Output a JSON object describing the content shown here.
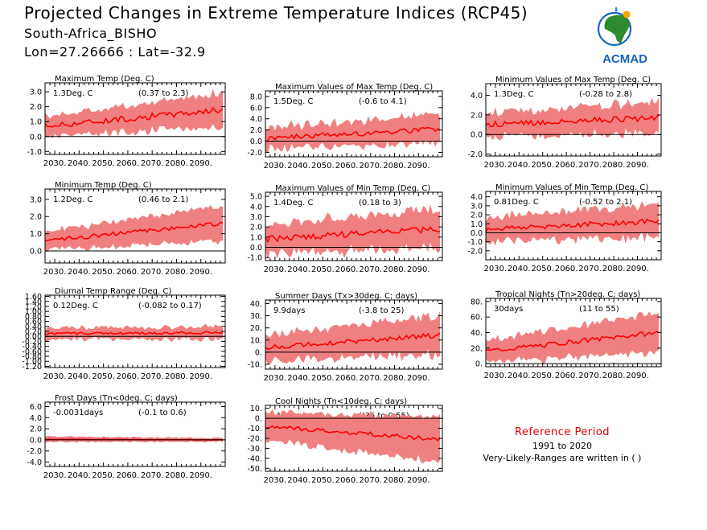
{
  "header": {
    "title": "Projected Changes in Extreme Temperature Indices (RCP45)",
    "location": "South-Africa_BISHO",
    "coords": "Lon=27.26666 : Lat=-32.9"
  },
  "logo": {
    "text": "ACMAD"
  },
  "reference": {
    "title": "Reference Period",
    "years": "1991 to 2020",
    "note": "Very-Likely-Ranges are written in ( )"
  },
  "colors": {
    "band": "#f08080",
    "line": "#ff0000",
    "zero": "#000000"
  },
  "chart_data": [
    {
      "type": "area",
      "title": "Maximum Temp (Deg. C)",
      "value": "1.3Deg. C",
      "range": "(0.37 to 2.3)",
      "yticks": [
        "-1.0",
        "0.0",
        "1.0",
        "2.0",
        "3.0"
      ],
      "ylim": [
        -1.2,
        3.6
      ],
      "x_ticks": [
        "2030.",
        "2040.",
        "2050.",
        "2060.",
        "2070.",
        "2080.",
        "2090."
      ],
      "xlim": [
        2026,
        2100
      ],
      "median_start": 0.7,
      "median_end": 1.8,
      "band_start": 0.5,
      "band_end": 1.0,
      "noise": 0.2,
      "spread": 0.3
    },
    {
      "type": "area",
      "title": "Maximum Values of Max Temp (Deg. C)",
      "value": "1.5Deg. C",
      "range": "(-0.6 to 4.1)",
      "yticks": [
        "-2.0",
        "0.0",
        "2.0",
        "4.0",
        "6.0",
        "8.0"
      ],
      "ylim": [
        -2.8,
        9.0
      ],
      "x_ticks": [
        "2030.",
        "2040.",
        "2050.",
        "2060.",
        "2070.",
        "2080.",
        "2090."
      ],
      "xlim": [
        2026,
        2100
      ],
      "median_start": 0.5,
      "median_end": 2.2,
      "band_start": 1.3,
      "band_end": 2.0,
      "noise": 0.5,
      "spread": 1.3
    },
    {
      "type": "area",
      "title": "Minimum Values of Max Temp (Deg. C)",
      "value": "1.3Deg. C",
      "range": "(-0.28 to 2.8)",
      "yticks": [
        "-2.0",
        "0.0",
        "2.0",
        "4.0"
      ],
      "ylim": [
        -2.2,
        5.2
      ],
      "x_ticks": [
        "2030.",
        "2040.",
        "2050.",
        "2060.",
        "2070.",
        "2080.",
        "2090."
      ],
      "xlim": [
        2026,
        2100
      ],
      "median_start": 1.0,
      "median_end": 1.7,
      "band_start": 0.9,
      "band_end": 1.3,
      "noise": 0.3,
      "spread": 0.6
    },
    {
      "type": "area",
      "title": "Minimum Temp (Deg. C)",
      "value": "1.2Deg. C",
      "range": "(0.46 to 2.1)",
      "yticks": [
        "0.0",
        "1.0",
        "2.0",
        "3.0"
      ],
      "ylim": [
        -0.7,
        3.6
      ],
      "x_ticks": [
        "2030.",
        "2040.",
        "2050.",
        "2060.",
        "2070.",
        "2080.",
        "2090."
      ],
      "xlim": [
        2026,
        2100
      ],
      "median_start": 0.6,
      "median_end": 1.6,
      "band_start": 0.4,
      "band_end": 0.9,
      "noise": 0.12,
      "spread": 0.25
    },
    {
      "type": "area",
      "title": "Maximum Values of Min Temp (Deg. C)",
      "value": "1.4Deg. C",
      "range": "(0.18 to 3)",
      "yticks": [
        "-1.0",
        "0.0",
        "1.0",
        "2.0",
        "3.0",
        "4.0",
        "5.0"
      ],
      "ylim": [
        -1.3,
        5.4
      ],
      "x_ticks": [
        "2030.",
        "2040.",
        "2050.",
        "2060.",
        "2070.",
        "2080.",
        "2090."
      ],
      "xlim": [
        2026,
        2100
      ],
      "median_start": 0.8,
      "median_end": 1.8,
      "band_start": 0.9,
      "band_end": 1.5,
      "noise": 0.3,
      "spread": 0.9
    },
    {
      "type": "area",
      "title": "Minimum Values of Min Temp (Deg. C)",
      "value": "0.81Deg. C",
      "range": "(-0.52 to 2.1)",
      "yticks": [
        "-2.0",
        "-1.0",
        "0.0",
        "1.0",
        "2.0",
        "3.0",
        "4.0"
      ],
      "ylim": [
        -3.0,
        4.6
      ],
      "x_ticks": [
        "2030.",
        "2040.",
        "2050.",
        "2060.",
        "2070.",
        "2080.",
        "2090."
      ],
      "xlim": [
        2026,
        2100
      ],
      "median_start": 0.4,
      "median_end": 1.3,
      "band_start": 1.0,
      "band_end": 1.4,
      "noise": 0.3,
      "spread": 0.8
    },
    {
      "type": "area",
      "title": "Diurnal Temp Range (Deg. C)",
      "value": "0.12Deg. C",
      "range": "(-0.082 to 0.17)",
      "yticks": [
        "-1.20",
        "-1.00",
        "-0.80",
        "-0.60",
        "-0.40",
        "-0.20",
        "0.00",
        "0.20",
        "0.40",
        "0.60",
        "0.80",
        "1.00",
        "1.20",
        "1.40",
        "1.60"
      ],
      "ylim": [
        -1.25,
        1.65
      ],
      "x_ticks": [
        "2030.",
        "2040.",
        "2050.",
        "2060.",
        "2070.",
        "2080.",
        "2090."
      ],
      "xlim": [
        2026,
        2100
      ],
      "median_start": 0.1,
      "median_end": 0.15,
      "band_start": 0.15,
      "band_end": 0.18,
      "noise": 0.05,
      "spread": 0.15
    },
    {
      "type": "area",
      "title": "Summer Days (Tx>30deg. C; days)",
      "value": "9.9days",
      "range": "(-3.8 to 25)",
      "yticks": [
        "-10.",
        "0.",
        "10.",
        "20.",
        "30.",
        "40."
      ],
      "ylim": [
        -14,
        43
      ],
      "x_ticks": [
        "2030.",
        "2040.",
        "2050.",
        "2060.",
        "2070.",
        "2080.",
        "2090."
      ],
      "xlim": [
        2026,
        2100
      ],
      "median_start": 4,
      "median_end": 14,
      "band_start": 8,
      "band_end": 13,
      "noise": 2,
      "spread": 6
    },
    {
      "type": "area",
      "title": "Tropical Nights (Tn>20deg. C; days)",
      "value": "30days",
      "range": "(11 to 55)",
      "yticks": [
        "0.",
        "20.",
        "40.",
        "60.",
        "80."
      ],
      "ylim": [
        -4,
        84
      ],
      "x_ticks": [
        "2030.",
        "2040.",
        "2050.",
        "2060.",
        "2070.",
        "2080.",
        "2090."
      ],
      "xlim": [
        2026,
        2100
      ],
      "median_start": 16,
      "median_end": 40,
      "band_start": 10,
      "band_end": 22,
      "noise": 3,
      "spread": 7
    },
    {
      "type": "area",
      "title": "Frost Days (Tn<0deg. C; days)",
      "value": "-0.0031days",
      "range": "(-0.1 to 0.6)",
      "yticks": [
        "-4.0",
        "-2.0",
        "0.0",
        "2.0",
        "4.0",
        "6.0"
      ],
      "ylim": [
        -4.8,
        6.8
      ],
      "x_ticks": [
        "2030.",
        "2040.",
        "2050.",
        "2060.",
        "2070.",
        "2080.",
        "2090."
      ],
      "xlim": [
        2026,
        2100
      ],
      "median_start": 0.1,
      "median_end": 0.0,
      "band_start": 0.4,
      "band_end": 0.25,
      "noise": 0.05,
      "spread": 0.2
    },
    {
      "type": "area",
      "title": "Cool Nights (Tn<10deg. C; days)",
      "value": "-17days",
      "range": "(-36 to 0.55)",
      "yticks": [
        "-50.",
        "-40.",
        "-30.",
        "-20.",
        "-10.",
        "0.",
        "10."
      ],
      "ylim": [
        -53,
        13
      ],
      "x_ticks": [
        "2030.",
        "2040.",
        "2050.",
        "2060.",
        "2070.",
        "2080.",
        "2090."
      ],
      "xlim": [
        2026,
        2100
      ],
      "median_start": -8,
      "median_end": -21,
      "band_start": 12,
      "band_end": 20,
      "noise": 2,
      "spread": 5
    }
  ]
}
